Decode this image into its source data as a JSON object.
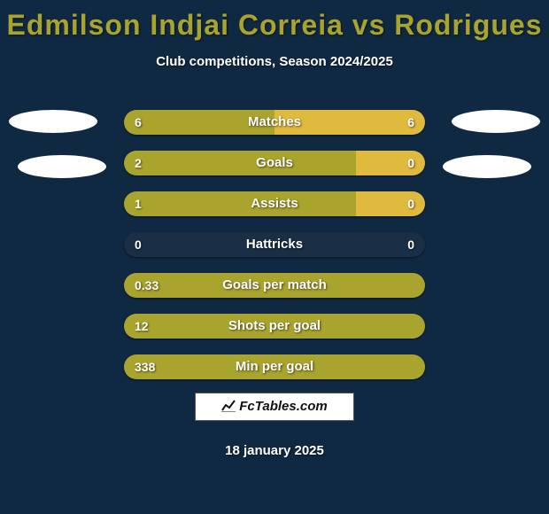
{
  "title": "Edmilson Indjai Correia vs Rodrigues",
  "subtitle": "Club competitions, Season 2024/2025",
  "colors": {
    "background": "#102942",
    "title": "#a9a42e",
    "text": "#ffffff",
    "bar_left": "#a9a42e",
    "bar_right": "#e0b93f",
    "bar_bg": "#1a2f45",
    "ellipse": "#ffffff",
    "brand_bg": "#ffffff"
  },
  "bars": [
    {
      "label": "Matches",
      "left": "6",
      "right": "6",
      "left_pct": 50,
      "right_pct": 50
    },
    {
      "label": "Goals",
      "left": "2",
      "right": "0",
      "left_pct": 77,
      "right_pct": 23
    },
    {
      "label": "Assists",
      "left": "1",
      "right": "0",
      "left_pct": 77,
      "right_pct": 23
    },
    {
      "label": "Hattricks",
      "left": "0",
      "right": "0",
      "left_pct": 0,
      "right_pct": 0
    },
    {
      "label": "Goals per match",
      "left": "0.33",
      "right": "",
      "left_pct": 100,
      "right_pct": 0
    },
    {
      "label": "Shots per goal",
      "left": "12",
      "right": "",
      "left_pct": 100,
      "right_pct": 0
    },
    {
      "label": "Min per goal",
      "left": "338",
      "right": "",
      "left_pct": 100,
      "right_pct": 0
    }
  ],
  "brand": "FcTables.com",
  "date": "18 january 2025"
}
